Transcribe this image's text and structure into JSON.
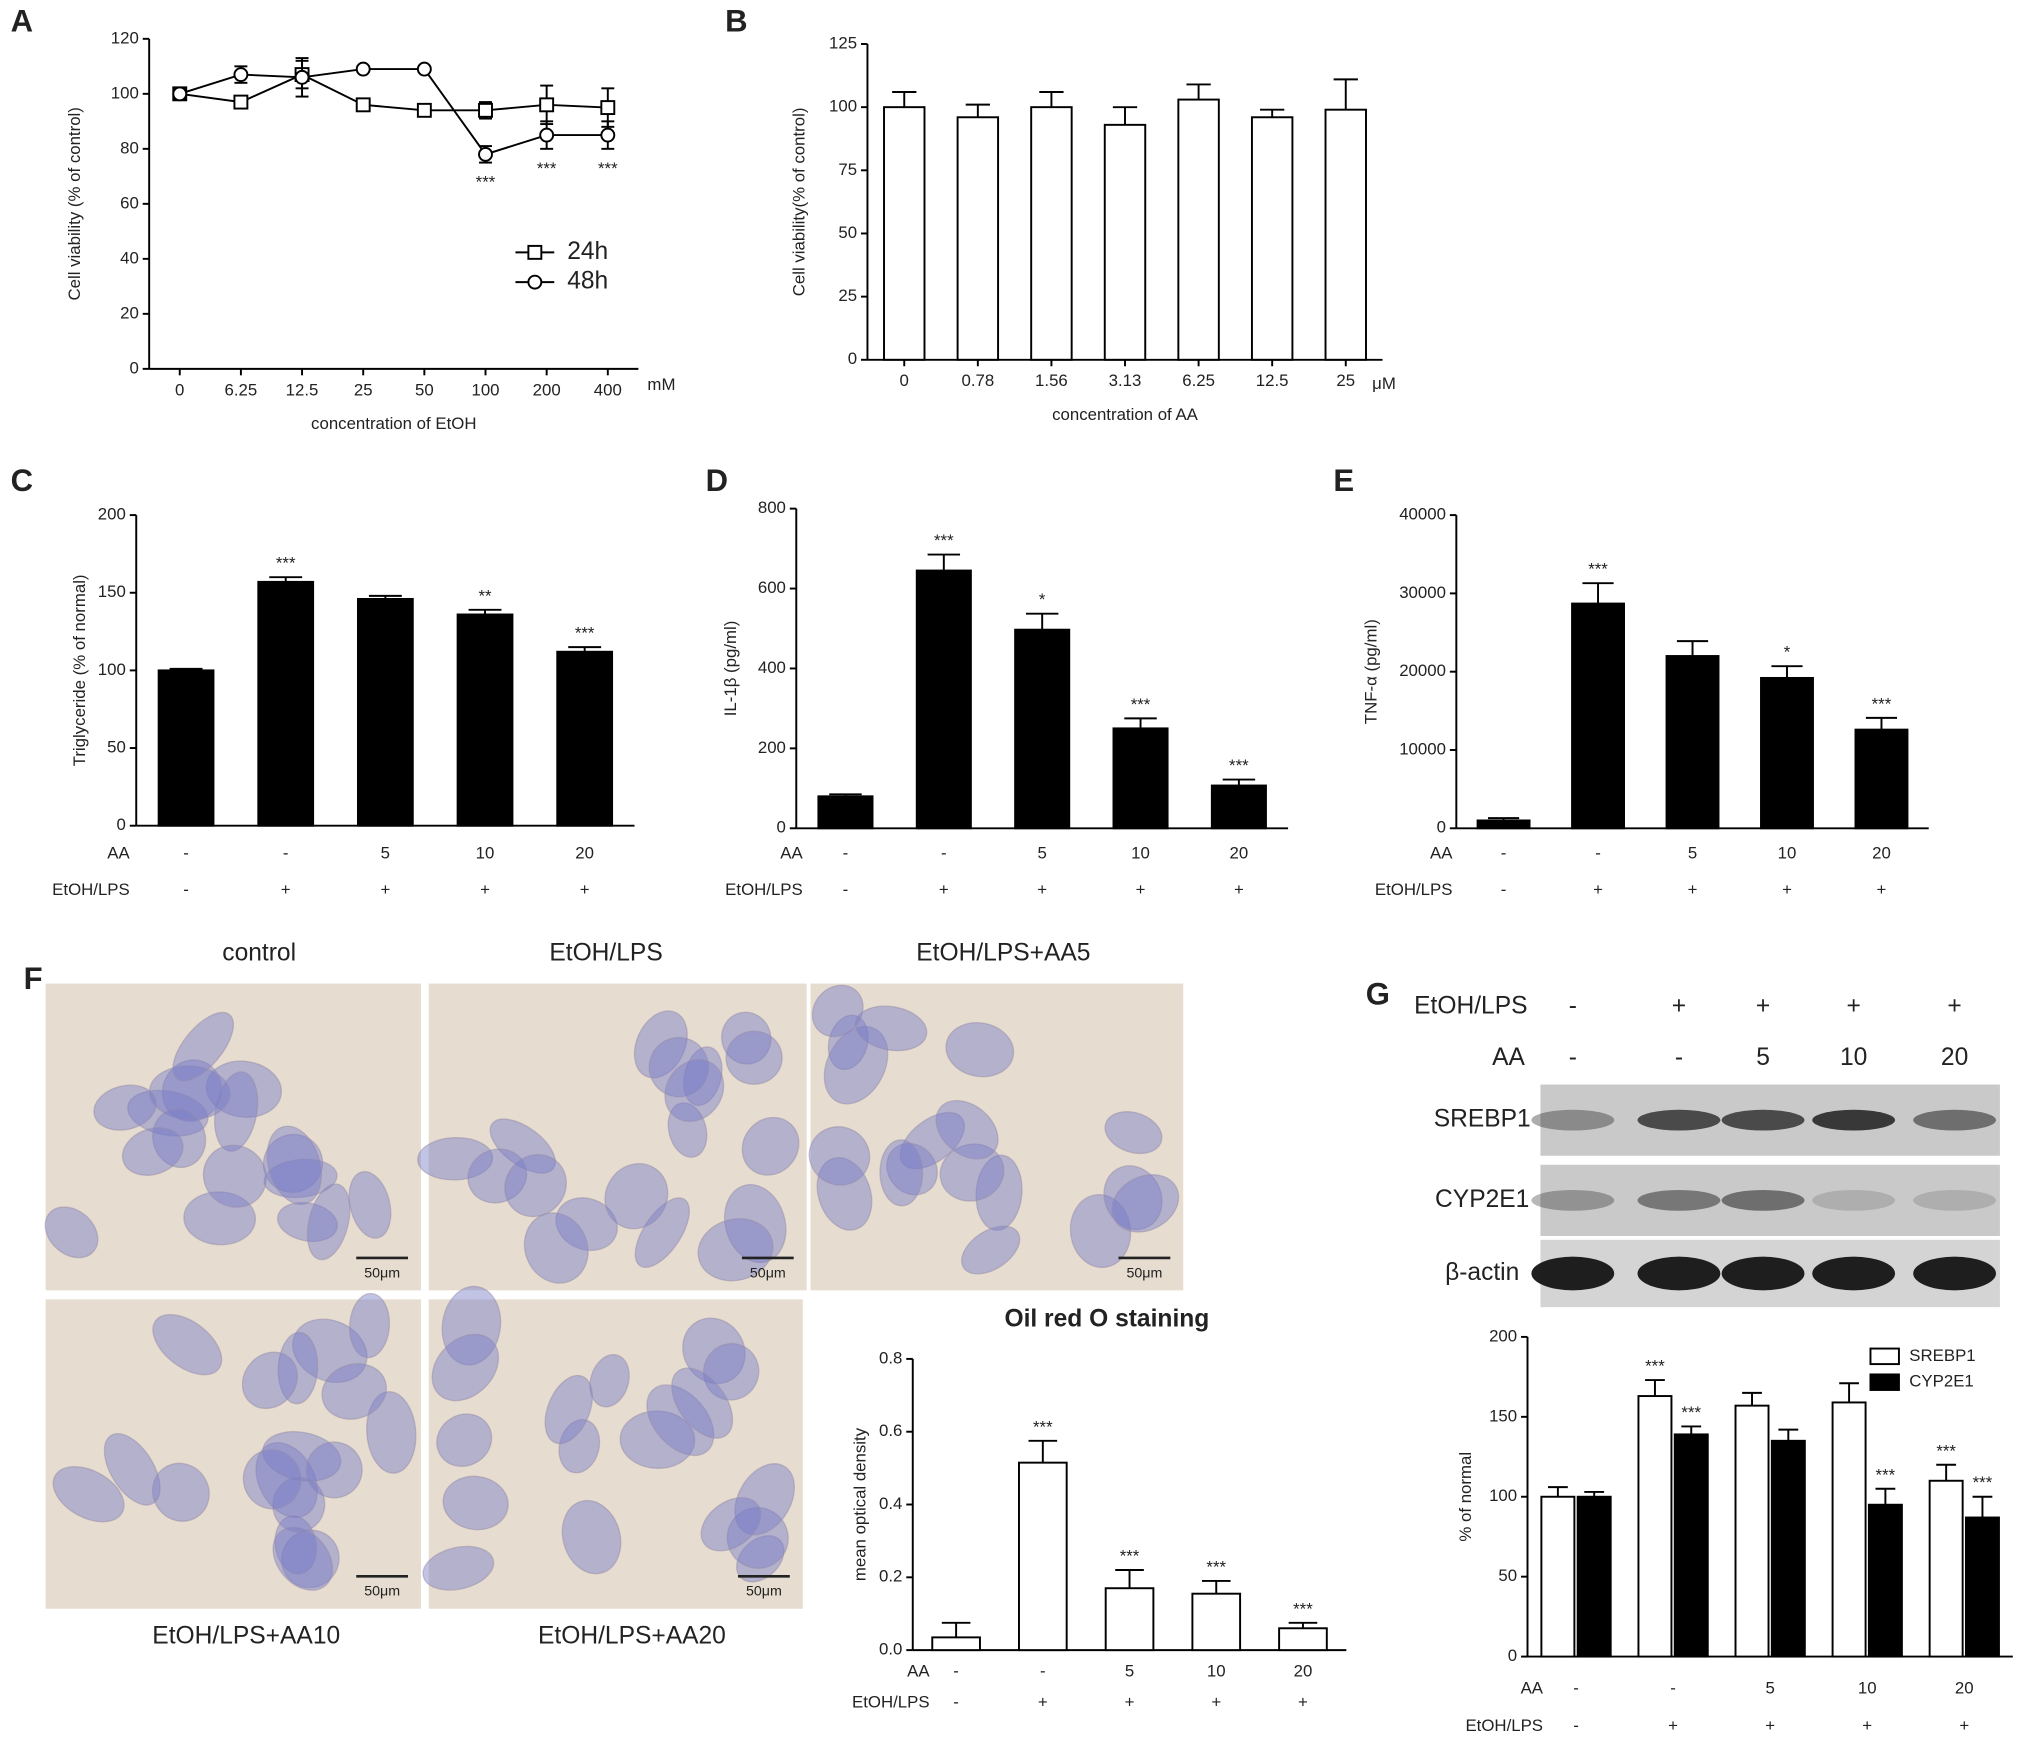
{
  "chart_data": [
    {
      "type": "line",
      "panel": "A",
      "x_label": "concentration of EtOH",
      "x_unit": "mM",
      "y_label": "Cell viability (% of control)",
      "categories": [
        "0",
        "6.25",
        "12.5",
        "25",
        "50",
        "100",
        "200",
        "400"
      ],
      "ylim": [
        0,
        120
      ],
      "yticks": [
        0,
        20,
        40,
        60,
        80,
        100,
        120
      ],
      "legend": "lower right",
      "series": [
        {
          "name": "24h",
          "marker": "square",
          "color": "#000000",
          "values": [
            100,
            97,
            107,
            96,
            94,
            94,
            96,
            95
          ],
          "errors": [
            2,
            2,
            5,
            1,
            1,
            3,
            7,
            7
          ],
          "significance": [
            null,
            null,
            null,
            null,
            null,
            null,
            null,
            null
          ]
        },
        {
          "name": "48h",
          "marker": "circle",
          "color": "#000000",
          "values": [
            100,
            107,
            106,
            109,
            109,
            78,
            85,
            85
          ],
          "errors": [
            2,
            3,
            7,
            1,
            1,
            3,
            5,
            5
          ],
          "significance": [
            null,
            null,
            null,
            null,
            null,
            "***",
            "***",
            "***"
          ]
        }
      ]
    },
    {
      "type": "bar",
      "panel": "B",
      "x_label": "concentration of AA",
      "x_unit": "μM",
      "y_label": "Cell viability(% of control)",
      "categories": [
        "0",
        "0.78",
        "1.56",
        "3.13",
        "6.25",
        "12.5",
        "25"
      ],
      "color": "#ffffff",
      "values": [
        100,
        96,
        100,
        93,
        103,
        96,
        99
      ],
      "errors": [
        6,
        5,
        6,
        7,
        6,
        3,
        12
      ],
      "ylim": [
        0,
        125
      ],
      "yticks": [
        0,
        25,
        50,
        75,
        100,
        125
      ]
    },
    {
      "type": "bar",
      "panel": "C",
      "y_label": "Triglyceride (% of normal)",
      "color": "#000000",
      "treatments": [
        {
          "name": "AA",
          "values": [
            "-",
            "-",
            "5",
            "10",
            "20"
          ]
        },
        {
          "name": "EtOH/LPS",
          "values": [
            "-",
            "+",
            "+",
            "+",
            "+"
          ]
        }
      ],
      "values": [
        100,
        157,
        146,
        136,
        112
      ],
      "errors": [
        1,
        3,
        2,
        3,
        3
      ],
      "significance": [
        null,
        "***",
        null,
        "**",
        "***"
      ],
      "ylim": [
        0,
        200
      ],
      "yticks": [
        0,
        50,
        100,
        150,
        200
      ]
    },
    {
      "type": "bar",
      "panel": "D",
      "y_label": "IL-1β (pg/ml)",
      "color": "#000000",
      "treatments": [
        {
          "name": "AA",
          "values": [
            "-",
            "-",
            "5",
            "10",
            "20"
          ]
        },
        {
          "name": "EtOH/LPS",
          "values": [
            "-",
            "+",
            "+",
            "+",
            "+"
          ]
        }
      ],
      "values": [
        80,
        645,
        497,
        250,
        107
      ],
      "errors": [
        5,
        40,
        40,
        25,
        15
      ],
      "significance": [
        null,
        "***",
        "*",
        "***",
        "***"
      ],
      "ylim": [
        0,
        800
      ],
      "yticks": [
        0,
        200,
        400,
        600,
        800
      ]
    },
    {
      "type": "bar",
      "panel": "E",
      "y_label": "TNF-α (pg/ml)",
      "color": "#000000",
      "treatments": [
        {
          "name": "AA",
          "values": [
            "-",
            "-",
            "5",
            "10",
            "20"
          ]
        },
        {
          "name": "EtOH/LPS",
          "values": [
            "-",
            "+",
            "+",
            "+",
            "+"
          ]
        }
      ],
      "values": [
        1000,
        28700,
        22000,
        19200,
        12600
      ],
      "errors": [
        300,
        2600,
        1900,
        1500,
        1500
      ],
      "significance": [
        null,
        "***",
        null,
        "*",
        "***"
      ],
      "ylim": [
        0,
        40000
      ],
      "yticks": [
        0,
        10000,
        20000,
        30000,
        40000
      ]
    },
    {
      "type": "bar",
      "title": "Oil red O staining",
      "y_label": "mean optical density",
      "color": "#ffffff",
      "treatments": [
        {
          "name": "AA",
          "values": [
            "-",
            "-",
            "5",
            "10",
            "20"
          ]
        },
        {
          "name": "EtOH/LPS",
          "values": [
            "-",
            "+",
            "+",
            "+",
            "+"
          ]
        }
      ],
      "values": [
        0.035,
        0.515,
        0.17,
        0.155,
        0.06
      ],
      "errors": [
        0.04,
        0.06,
        0.05,
        0.035,
        0.015
      ],
      "significance": [
        null,
        "***",
        "***",
        "***",
        "***"
      ],
      "ylim": [
        0,
        0.8
      ],
      "yticks": [
        {
          "value": 0,
          "label": "0.0"
        },
        0.2,
        0.4,
        0.6,
        0.8
      ]
    },
    {
      "type": "bar",
      "y_label": "% of normal",
      "legend": "upper right",
      "treatments": [
        {
          "name": "AA",
          "values": [
            "-",
            "-",
            "5",
            "10",
            "20"
          ]
        },
        {
          "name": "EtOH/LPS",
          "values": [
            "-",
            "+",
            "+",
            "+",
            "+"
          ]
        }
      ],
      "series": [
        {
          "name": "SREBP1",
          "color": "#ffffff",
          "values": [
            100,
            163,
            157,
            159,
            110
          ],
          "errors": [
            6,
            10,
            8,
            12,
            10
          ],
          "significance": [
            null,
            "***",
            null,
            null,
            "***"
          ]
        },
        {
          "name": "CYP2E1",
          "color": "#000000",
          "values": [
            100,
            139,
            135,
            95,
            87
          ],
          "errors": [
            3,
            5,
            7,
            10,
            13
          ],
          "significance": [
            null,
            "***",
            null,
            "***",
            "***"
          ]
        }
      ],
      "ylim": [
        0,
        200
      ],
      "yticks": [
        0,
        50,
        100,
        150,
        200
      ]
    }
  ],
  "micrographs": {
    "panel": "F",
    "scale_bar": "50μm",
    "labels": [
      "control",
      "EtOH/LPS",
      "EtOH/LPS+AA5",
      "EtOH/LPS+AA10",
      "EtOH/LPS+AA20"
    ]
  },
  "blot": {
    "panel": "G",
    "rows": [
      {
        "name": "EtOH/LPS",
        "values": [
          "-",
          "+",
          "+",
          "+",
          "+"
        ]
      },
      {
        "name": "AA",
        "values": [
          "-",
          "-",
          "5",
          "10",
          "20"
        ]
      }
    ],
    "bands": [
      "SREBP1",
      "CYP2E1",
      "β-actin"
    ]
  }
}
